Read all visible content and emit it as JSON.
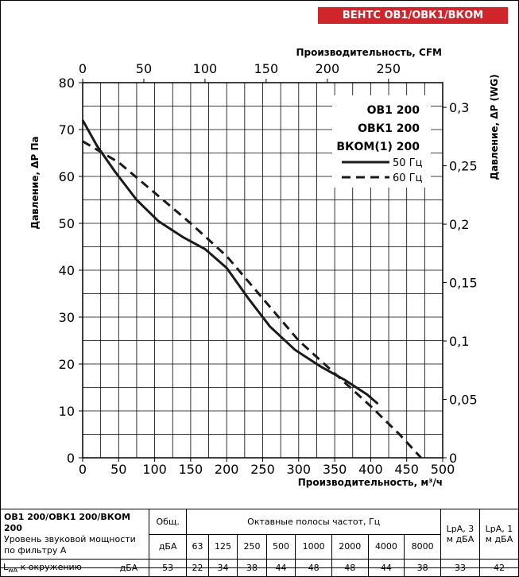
{
  "badge": "ВЕНТС ОВ1/ОВК1/ВКОМ",
  "chart_data": {
    "type": "line",
    "top_axis_label": "Производительность, CFM",
    "top_ticks": [
      0,
      50,
      100,
      150,
      200,
      250
    ],
    "xlabel": "Производительность, м³/ч",
    "x_ticks": [
      0,
      50,
      100,
      150,
      200,
      250,
      300,
      350,
      400,
      450,
      500
    ],
    "xlim": [
      0,
      500
    ],
    "ylabel": "Давление, ΔP Па",
    "y_ticks": [
      0,
      10,
      20,
      30,
      40,
      50,
      60,
      70,
      80
    ],
    "ylim": [
      0,
      80
    ],
    "right_axis_label": "Давление, ΔP (WG)",
    "right_ticks": [
      "0",
      "0,05",
      "0,1",
      "0,15",
      "0,2",
      "0,25",
      "0,3"
    ],
    "grid": true,
    "legend_titles": [
      "ОВ1 200",
      "ОВК1 200",
      "ВКОМ(1) 200"
    ],
    "series": [
      {
        "name": "50 Гц",
        "style": "solid",
        "points": [
          [
            0,
            72
          ],
          [
            20,
            66.5
          ],
          [
            45,
            61
          ],
          [
            75,
            55
          ],
          [
            105,
            50.5
          ],
          [
            140,
            47
          ],
          [
            170,
            44.5
          ],
          [
            200,
            40.5
          ],
          [
            230,
            34
          ],
          [
            260,
            28
          ],
          [
            295,
            23
          ],
          [
            330,
            19.5
          ],
          [
            365,
            16.5
          ],
          [
            395,
            13.5
          ],
          [
            410,
            11.5
          ]
        ]
      },
      {
        "name": "60 Гц",
        "style": "dashed",
        "points": [
          [
            0,
            67.5
          ],
          [
            50,
            63
          ],
          [
            100,
            56.5
          ],
          [
            150,
            50
          ],
          [
            200,
            43
          ],
          [
            250,
            34
          ],
          [
            300,
            25
          ],
          [
            350,
            18
          ],
          [
            400,
            11
          ],
          [
            440,
            5
          ],
          [
            470,
            0
          ]
        ]
      }
    ]
  },
  "table": {
    "title": "ОВ1 200/ОВК1 200/ВКОМ 200",
    "subtitle1": "Уровень звуковой мощности",
    "subtitle2": "по фильтру А",
    "total_header": "Общ.",
    "octave_header": "Октавные полосы частот, Гц",
    "lpa3_header": "LpA, 3 м дБА",
    "lpa1_header": "LpA, 1 м дБА",
    "unit": "дБА",
    "freqs": [
      "63",
      "125",
      "250",
      "500",
      "1000",
      "2000",
      "4000",
      "8000"
    ],
    "row_label_main": "L",
    "row_label_sub": "wA",
    "row_label_rest": " к окружению",
    "row_unit": "дБА",
    "total": "53",
    "values": [
      "22",
      "34",
      "38",
      "44",
      "48",
      "48",
      "44",
      "38"
    ],
    "lpa3": "33",
    "lpa1": "42"
  }
}
